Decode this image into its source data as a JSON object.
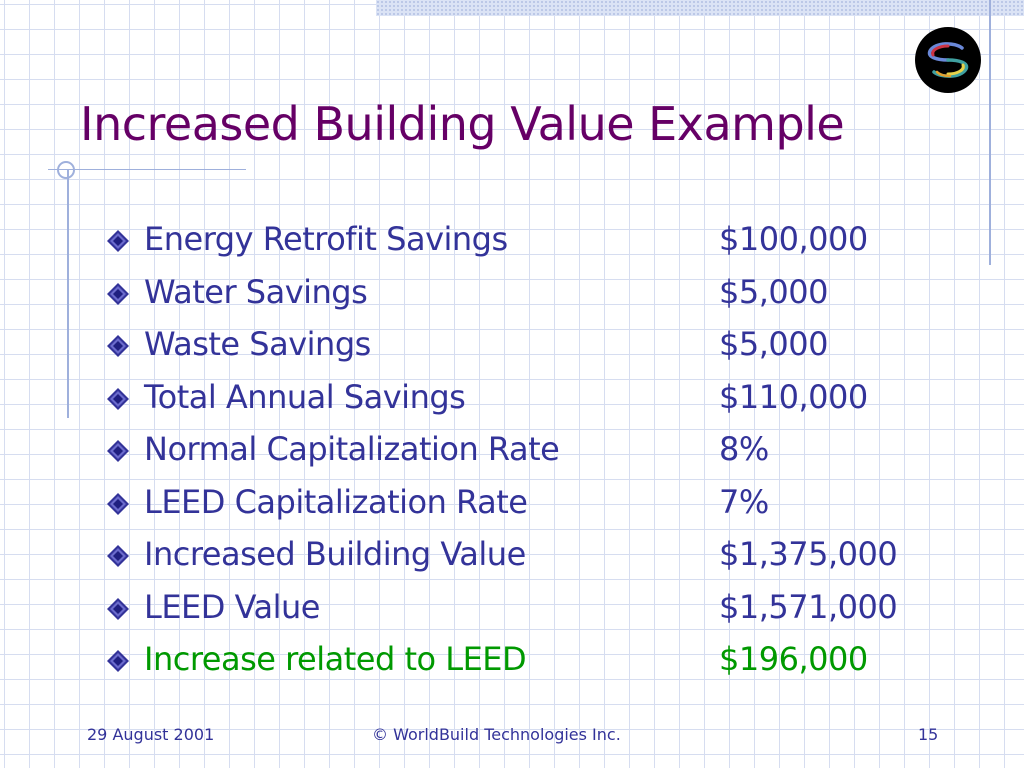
{
  "slide": {
    "title": "Increased Building Value Example",
    "bullet_icon": "diamond-bullet-icon",
    "logo_icon": "worldbuild-logo-icon",
    "colors": {
      "title": "#660066",
      "body": "#333399",
      "highlight": "#009900",
      "grid": "#d6ddf0"
    },
    "items": [
      {
        "label": "Energy Retrofit Savings",
        "value": "$100,000"
      },
      {
        "label": "Water Savings",
        "value": "$5,000"
      },
      {
        "label": "Waste Savings",
        "value": "$5,000"
      },
      {
        "label": "Total Annual Savings",
        "value": "$110,000"
      },
      {
        "label": "Normal Capitalization Rate",
        "value": "8%"
      },
      {
        "label": "LEED Capitalization Rate",
        "value": "7%"
      },
      {
        "label": "Increased Building Value",
        "value": "$1,375,000"
      },
      {
        "label": "LEED Value",
        "value": "$1,571,000"
      },
      {
        "label": "Increase related to LEED",
        "value": "$196,000"
      }
    ]
  },
  "footer": {
    "date": "29 August 2001",
    "copyright": "© WorldBuild Technologies Inc.",
    "page_number": "15"
  }
}
